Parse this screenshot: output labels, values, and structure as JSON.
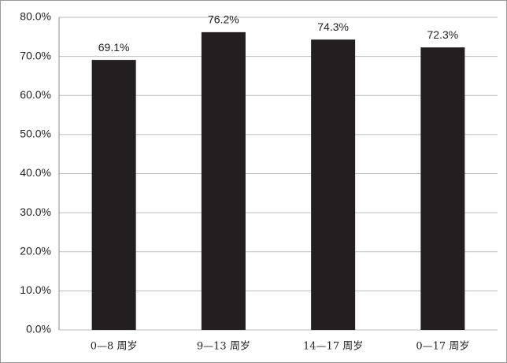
{
  "chart_data": {
    "type": "bar",
    "categories": [
      "0—8 周岁",
      "9—13 周岁",
      "14—17 周岁",
      "0—17 周岁"
    ],
    "values": [
      69.1,
      76.2,
      74.3,
      72.3
    ],
    "value_labels": [
      "69.1%",
      "76.2%",
      "74.3%",
      "72.3%"
    ],
    "color": "#231f20",
    "ylim": [
      0,
      80
    ],
    "yticks": [
      {
        "value": 0,
        "label": "0.0%"
      },
      {
        "value": 10,
        "label": "10.0%"
      },
      {
        "value": 20,
        "label": "20.0%"
      },
      {
        "value": 30,
        "label": "30.0%"
      },
      {
        "value": 40,
        "label": "40.0%"
      },
      {
        "value": 50,
        "label": "50.0%"
      },
      {
        "value": 60,
        "label": "60.0%"
      },
      {
        "value": 70,
        "label": "70.0%"
      },
      {
        "value": 80,
        "label": "80.0%"
      }
    ],
    "grid": true
  }
}
